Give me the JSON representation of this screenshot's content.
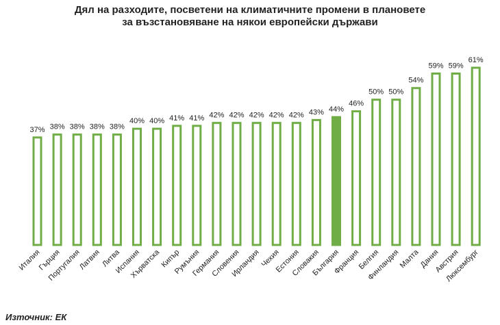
{
  "title": "Дял на разходите, посветени на климатичните промени в плановете за възстановяване на някои европейски държави",
  "title_lines": [
    "Дял на разходите, посветени на климатичните промени в плановете",
    "за възстановяване на някои европейски държави"
  ],
  "source": "Източник: ЕК",
  "colors": {
    "bar_outline": "#70ad47",
    "bar_fill_highlight": "#70ad47",
    "bar_fill": "#ffffff",
    "text": "#222222"
  },
  "chart_data": {
    "type": "bar",
    "categories": [
      "Италия",
      "Гърция",
      "Португалия",
      "Латвия",
      "Литва",
      "Испания",
      "Хърватска",
      "Кипър",
      "Румъния",
      "Германия",
      "Словения",
      "Ирландия",
      "Чехия",
      "Естония",
      "Словакия",
      "България",
      "Франция",
      "Белгия",
      "Финландия",
      "Малта",
      "Дания",
      "Австрия",
      "Люксембург"
    ],
    "values": [
      37,
      38,
      38,
      38,
      38,
      40,
      40,
      41,
      41,
      42,
      42,
      42,
      42,
      42,
      43,
      44,
      46,
      50,
      50,
      54,
      59,
      59,
      61
    ],
    "value_labels": [
      "37%",
      "38%",
      "38%",
      "38%",
      "38%",
      "40%",
      "40%",
      "41%",
      "41%",
      "42%",
      "42%",
      "42%",
      "42%",
      "42%",
      "43%",
      "44%",
      "46%",
      "50%",
      "50%",
      "54%",
      "59%",
      "59%",
      "61%"
    ],
    "highlight": "България",
    "title": "Дял на разходите, посветени на климатичните промени в плановете за възстановяване на някои европейски държави",
    "xlabel": "",
    "ylabel": "",
    "ylim": [
      0,
      61
    ],
    "grid": false,
    "legend": "none"
  }
}
